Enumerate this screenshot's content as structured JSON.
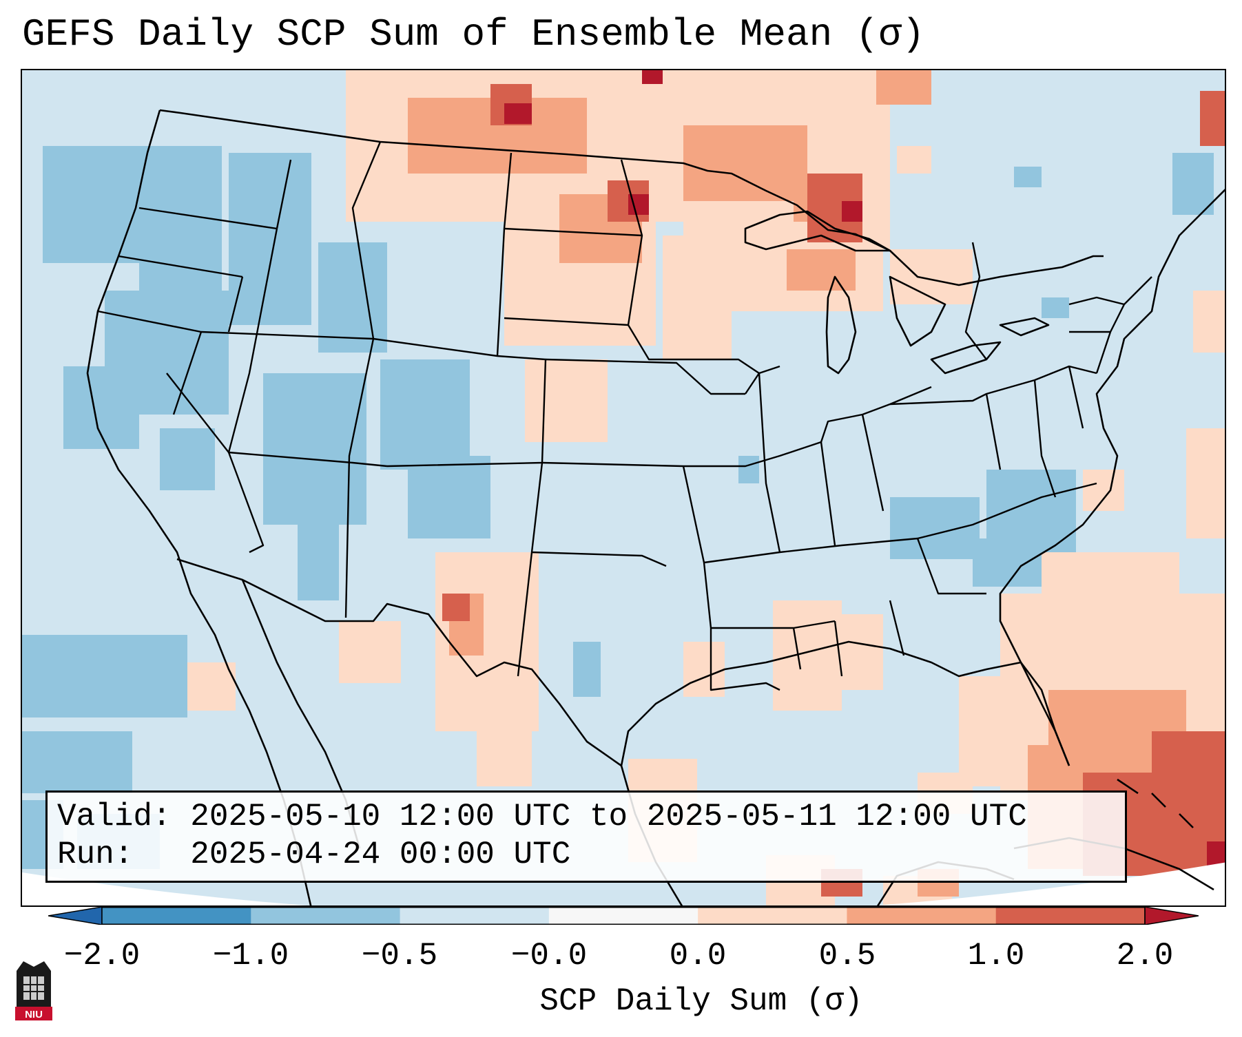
{
  "title": "GEFS Daily SCP Sum of Ensemble Mean (σ)",
  "info": {
    "valid_line": "Valid: 2025-05-10 12:00 UTC to 2025-05-11 12:00 UTC",
    "run_line": "Run:   2025-04-24 00:00 UTC"
  },
  "colorbar": {
    "label": "SCP Daily Sum (σ)",
    "ticks": [
      "−2.0",
      "−1.0",
      "−0.5",
      "−0.0",
      "0.0",
      "0.5",
      "1.0",
      "2.0"
    ],
    "bins": [
      {
        "range": "below -2.0",
        "color": "#2166ac"
      },
      {
        "range": "-2.0 to -1.0",
        "color": "#4393c3"
      },
      {
        "range": "-1.0 to -0.5",
        "color": "#92c5de"
      },
      {
        "range": "-0.5 to -0.0",
        "color": "#d1e5f0"
      },
      {
        "range": "-0.0 to 0.0",
        "color": "#f7f7f7"
      },
      {
        "range": "0.0 to 0.5",
        "color": "#fddbc7"
      },
      {
        "range": "0.5 to 1.0",
        "color": "#f4a582"
      },
      {
        "range": "1.0 to 2.0",
        "color": "#d6604d"
      },
      {
        "range": "above 2.0",
        "color": "#b2182b"
      }
    ]
  },
  "logo": {
    "text": "NIU",
    "icon": "niu-logo-icon"
  },
  "map": {
    "region": "Contiguous United States",
    "base_color": "#d1e5f0",
    "anomaly_regions": [
      {
        "area": "Northern Plains / North Dakota",
        "sign": "positive",
        "max_sigma": 2.0
      },
      {
        "area": "Upper Peninsula of Michigan / Lake Superior",
        "sign": "positive",
        "max_sigma": 2.0
      },
      {
        "area": "Eastern New Mexico / West Texas",
        "sign": "positive",
        "max_sigma": 1.0
      },
      {
        "area": "Caribbean / Bahamas",
        "sign": "positive",
        "max_sigma": 2.0
      },
      {
        "area": "Pacific Northwest and Great Basin",
        "sign": "negative",
        "max_sigma": -0.5
      },
      {
        "area": "Ohio Valley / Appalachians",
        "sign": "negative",
        "max_sigma": -0.5
      },
      {
        "area": "Eastern Pacific off Baja",
        "sign": "negative",
        "max_sigma": -1.0
      }
    ]
  }
}
